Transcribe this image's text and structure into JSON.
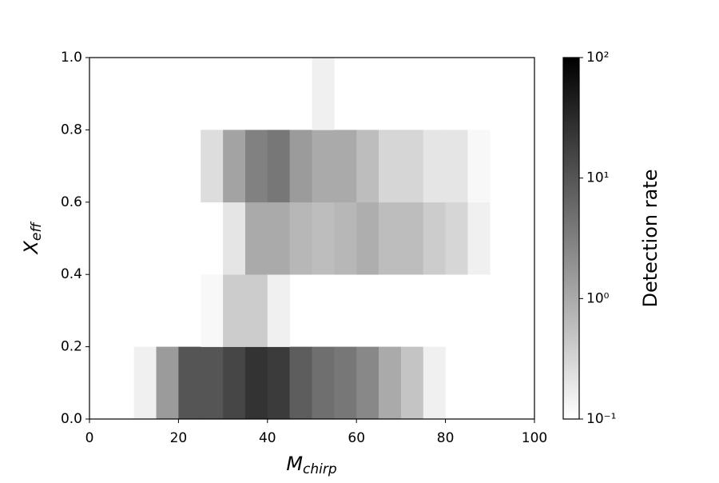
{
  "chart_data": {
    "type": "heatmap",
    "xlabel": {
      "main": "M",
      "sub": "chirp"
    },
    "ylabel": {
      "main": "X",
      "sub": "eff"
    },
    "colorbar_label": "Detection rate",
    "xbins": [
      0,
      5,
      10,
      15,
      20,
      25,
      30,
      35,
      40,
      45,
      50,
      55,
      60,
      65,
      70,
      75,
      80,
      85,
      90,
      95,
      100
    ],
    "ybins": [
      0,
      0.2,
      0.4,
      0.6,
      0.8,
      1
    ],
    "values": [
      [
        null,
        null,
        0.15,
        1.5,
        10,
        10,
        15,
        25,
        20,
        8,
        5,
        4,
        2.5,
        1,
        0.5,
        0.15,
        null,
        null,
        null,
        null
      ],
      [
        null,
        null,
        null,
        null,
        null,
        0.12,
        0.4,
        0.4,
        0.15,
        null,
        null,
        null,
        null,
        null,
        null,
        null,
        null,
        null,
        null,
        null
      ],
      [
        null,
        null,
        null,
        null,
        null,
        null,
        0.2,
        1,
        1,
        0.7,
        0.6,
        0.7,
        0.9,
        0.6,
        0.6,
        0.4,
        0.3,
        0.15,
        null,
        null
      ],
      [
        null,
        null,
        null,
        null,
        null,
        0.25,
        1.2,
        3,
        4,
        1.5,
        1,
        1,
        0.6,
        0.3,
        0.3,
        0.2,
        0.2,
        0.12,
        null,
        null
      ],
      [
        null,
        null,
        null,
        null,
        null,
        null,
        null,
        null,
        null,
        null,
        0.15,
        null,
        null,
        null,
        null,
        null,
        null,
        null,
        null,
        null
      ]
    ],
    "xlim": [
      0,
      100
    ],
    "xticks": [
      0,
      20,
      40,
      60,
      80,
      100
    ],
    "ylim": [
      0,
      1
    ],
    "yticks": [
      {
        "value": 0,
        "label": "0.0"
      },
      {
        "value": 0.2,
        "label": "0.2"
      },
      {
        "value": 0.4,
        "label": "0.4"
      },
      {
        "value": 0.6,
        "label": "0.6"
      },
      {
        "value": 0.8,
        "label": "0.8"
      },
      {
        "value": 1,
        "label": "1.0"
      }
    ],
    "clim": [
      0.1,
      100
    ],
    "color_scale": "log",
    "colormap": "gray_r",
    "cticks": [
      {
        "value": 0.1,
        "label": "10⁻¹"
      },
      {
        "value": 1,
        "label": "10⁰"
      },
      {
        "value": 10,
        "label": "10¹"
      },
      {
        "value": 100,
        "label": "10²"
      }
    ]
  }
}
